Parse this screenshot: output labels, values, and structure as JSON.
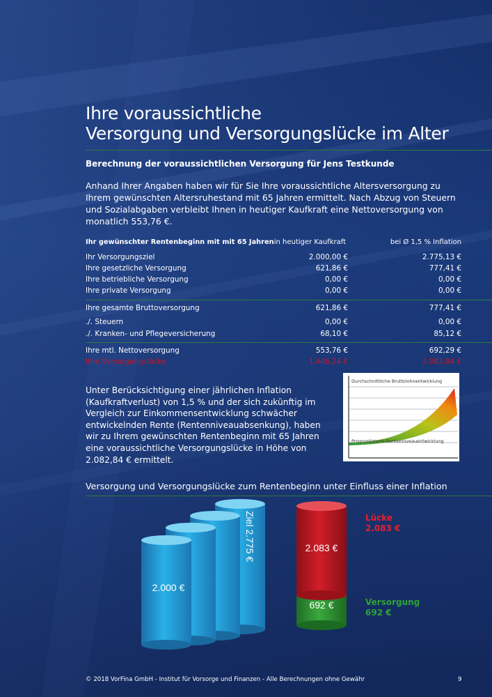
{
  "title_line1": "Ihre voraussichtliche",
  "title_line2": "Versorgung und Versorgungslücke im Alter",
  "subtitle": "Berechnung der voraussichtlichen Versorgung für Jens Testkunde",
  "intro": "Anhand Ihrer Angaben haben wir für Sie Ihre voraussichtliche Altersversorgung zu Ihrem gewünschten Altersruhestand mit 65 Jahren ermittelt. Nach Abzug von Steuern und Sozialabgaben verbleibt Ihnen in heutiger Kaufkraft eine Nettoversorgung von monatlich 553,76 €.",
  "table": {
    "headers": [
      "Ihr gewünschter Rentenbeginn mit mit 65 Jahren",
      "in heutiger Kaufkraft",
      "bei Ø 1,5 % Inflation"
    ],
    "group1": [
      [
        "Ihr Versorgungsziel",
        "2.000,00 €",
        "2.775,13 €"
      ],
      [
        "Ihre gesetzliche Versorgung",
        "621,86 €",
        "777,41 €"
      ],
      [
        "Ihre betriebliche Versorgung",
        "0,00 €",
        "0,00 €"
      ],
      [
        "Ihre private Versorgung",
        "0,00 €",
        "0,00 €"
      ]
    ],
    "group2": [
      [
        "Ihre gesamte Bruttoversorgung",
        "621,86 €",
        "777,41 €"
      ],
      [
        "./. Steuern",
        "0,00 €",
        "0,00 €"
      ],
      [
        "./. Kranken- und Pflegeversicherung",
        "68,10 €",
        "85,12 €"
      ]
    ],
    "group3": [
      [
        "Ihre mtl. Nettoversorgung",
        "553,76 €",
        "692,29 €"
      ],
      [
        "Ihre Versorgungslücke",
        "1.446,24 €",
        "2.082,84 €"
      ]
    ]
  },
  "para2": "Unter Berücksichtigung einer jährlichen Inflation (Kaufkraftverlust) von 1,5 % und der sich zukünftig im Vergleich zur Einkommensentwicklung schwächer entwickelnden Rente (Rentenniveauabsenkung), haben wir zu Ihrem gewünschten Rentenbeginn mit 65 Jahren eine voraussichtliche Versorgungslücke in Höhe von 2.082,84 € ermittelt.",
  "mini_chart": {
    "top_label": "Durchschnittliche Bruttolohnentwicklung",
    "bottom_label": "Prognostizierte Rentenniveauentwicklung"
  },
  "section2_title": "Versorgung und Versorgungslücke zum Rentenbeginn unter Einfluss einer Inflation",
  "cylinders": {
    "start_label": "2.000 €",
    "ziel_label": "Ziel 2.775 €",
    "luecke_value": "2.083 €",
    "versorgung_value": "692 €"
  },
  "legend": {
    "luecke_title": "Lücke",
    "luecke_value": "2.083 €",
    "versorgung_title": "Versorgung",
    "versorgung_value": "692 €"
  },
  "footer": "© 2018 VorFina GmbH - Institut für Vorsorge und Finanzen - Alle Berechnungen ohne Gewähr",
  "page_number": "9",
  "colors": {
    "background": "#1a3a7c",
    "accent_green": "#2f7a3c",
    "luecke_red": "#e4202e",
    "versorgung_green": "#2fa236",
    "cylinder_blue": "#2aa6dc"
  }
}
